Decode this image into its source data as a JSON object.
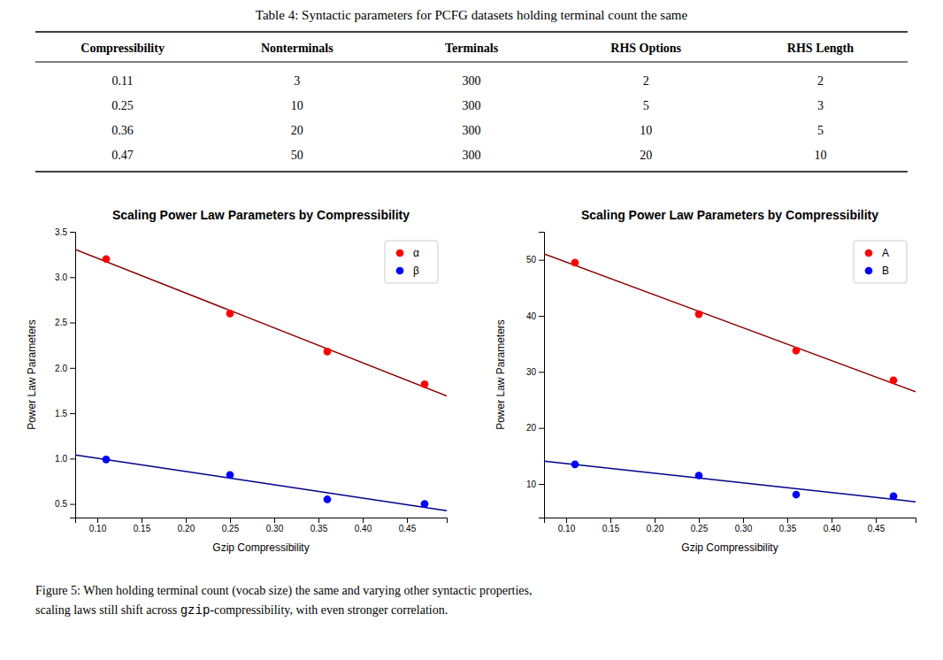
{
  "table": {
    "title": "Table 4: Syntactic parameters for PCFG datasets holding terminal count the same",
    "headers": [
      "Compressibility",
      "Nonterminals",
      "Terminals",
      "RHS Options",
      "RHS Length"
    ],
    "rows": [
      [
        "0.11",
        "3",
        "300",
        "2",
        "2"
      ],
      [
        "0.25",
        "10",
        "300",
        "5",
        "3"
      ],
      [
        "0.36",
        "20",
        "300",
        "10",
        "5"
      ],
      [
        "0.47",
        "50",
        "300",
        "20",
        "10"
      ]
    ]
  },
  "chart_data": [
    {
      "type": "scatter",
      "title": "Scaling Power Law Parameters by Compressibility",
      "x_label": "Gzip Compressibility",
      "y_label": "Power Law Parameters",
      "x": [
        0.11,
        0.25,
        0.36,
        0.47
      ],
      "series": [
        {
          "type": "line",
          "color": "#8B0000",
          "line_style": "solid",
          "x": [
            0.075,
            0.495
          ],
          "values": [
            3.3056,
            1.6906
          ]
        },
        {
          "type": "line",
          "color": "#00008B",
          "line_style": "solid",
          "x": [
            0.075,
            0.495
          ],
          "values": [
            1.0404,
            0.4261
          ]
        },
        {
          "name": "α",
          "type": "scatter",
          "marker": "circle",
          "color": "#FF0000",
          "values": [
            3.2,
            2.6,
            2.18,
            1.82
          ]
        },
        {
          "name": "β",
          "type": "scatter",
          "marker": "circle",
          "color": "#0000FF",
          "values": [
            0.99,
            0.82,
            0.55,
            0.5
          ]
        }
      ],
      "xlim": [
        0.075,
        0.495
      ],
      "ylim": [
        0.35,
        3.5
      ],
      "xticks": [
        {
          "value": 0.1,
          "label": "0.10"
        },
        {
          "value": 0.15,
          "label": "0.15"
        },
        {
          "value": 0.2,
          "label": "0.20"
        },
        {
          "value": 0.25,
          "label": "0.25"
        },
        {
          "value": 0.3,
          "label": "0.30"
        },
        {
          "value": 0.35,
          "label": "0.35"
        },
        {
          "value": 0.4,
          "label": "0.40"
        },
        {
          "value": 0.45,
          "label": "0.45"
        }
      ],
      "yticks": [
        0.5,
        {
          "value": 1,
          "label": "1.0"
        },
        1.5,
        {
          "value": 2,
          "label": "2.0"
        },
        2.5,
        {
          "value": 3,
          "label": "3.0"
        },
        3.5
      ],
      "grid": false,
      "legend": "upper right"
    },
    {
      "type": "scatter",
      "title": "Scaling Power Law Parameters by Compressibility",
      "x_label": "Gzip Compressibility",
      "y_label": "Power Law Parameters",
      "x": [
        0.11,
        0.25,
        0.36,
        0.47
      ],
      "series": [
        {
          "type": "line",
          "color": "#8B0000",
          "line_style": "solid",
          "x": [
            0.075,
            0.495
          ],
          "values": [
            51.069,
            26.4466
          ]
        },
        {
          "type": "line",
          "color": "#00008B",
          "line_style": "solid",
          "x": [
            0.075,
            0.495
          ],
          "values": [
            14.0622,
            6.8189
          ]
        },
        {
          "name": "A",
          "type": "scatter",
          "marker": "circle",
          "color": "#FF0000",
          "values": [
            49.5,
            40.3,
            33.8,
            28.5
          ]
        },
        {
          "name": "B",
          "type": "scatter",
          "marker": "circle",
          "color": "#0000FF",
          "values": [
            13.5,
            11.5,
            8.1,
            7.8
          ]
        }
      ],
      "xlim": [
        0.075,
        0.495
      ],
      "ylim": [
        4,
        55
      ],
      "xticks": [
        {
          "value": 0.1,
          "label": "0.10"
        },
        {
          "value": 0.15,
          "label": "0.15"
        },
        {
          "value": 0.2,
          "label": "0.20"
        },
        {
          "value": 0.25,
          "label": "0.25"
        },
        {
          "value": 0.3,
          "label": "0.30"
        },
        {
          "value": 0.35,
          "label": "0.35"
        },
        {
          "value": 0.4,
          "label": "0.40"
        },
        {
          "value": 0.45,
          "label": "0.45"
        }
      ],
      "yticks": [
        10,
        20,
        30,
        40,
        50
      ],
      "grid": false,
      "legend": "upper right"
    }
  ],
  "caption": [
    [
      "Figure 5: When holding terminal count (vocab size) the same and varying other syntactic properties,"
    ],
    [
      "scaling laws still shift across ",
      "gzip",
      "-compressibility, with even stronger correlation."
    ]
  ]
}
